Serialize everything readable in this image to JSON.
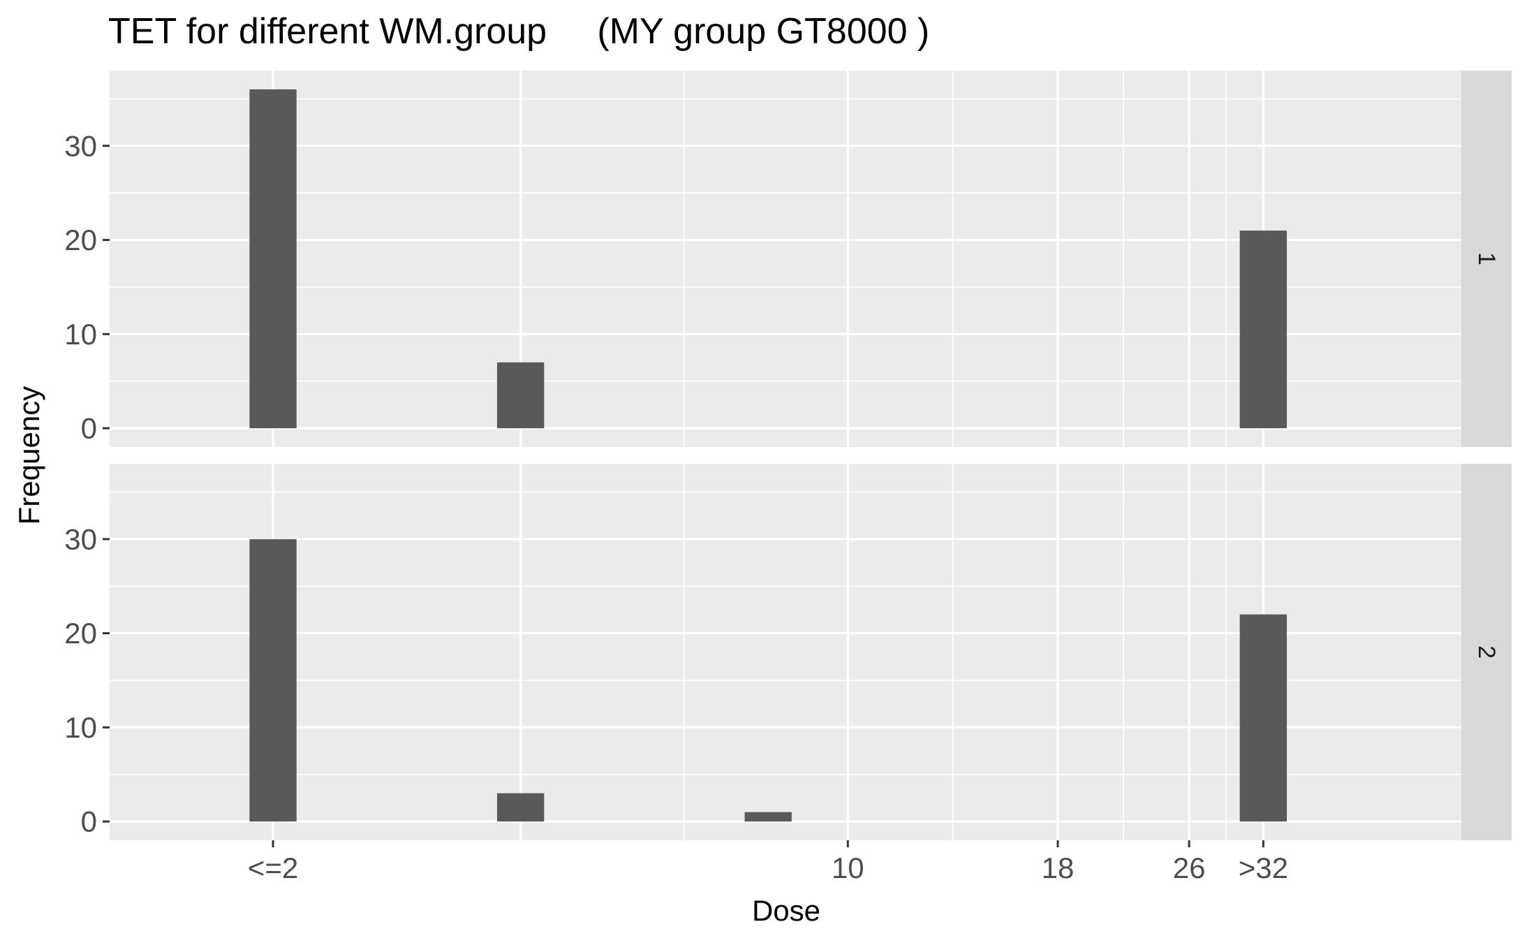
{
  "chart_data": {
    "type": "bar",
    "title": "TET for different WM.group     (MY group GT8000 )",
    "xlabel": "Dose",
    "ylabel": "Frequency",
    "x_ticks": [
      {
        "label": "<=2",
        "value": 2
      },
      {
        "label": "10",
        "value": 10
      },
      {
        "label": "18",
        "value": 18
      },
      {
        "label": "26",
        "value": 26
      },
      {
        "label": ">32",
        "value": 32
      }
    ],
    "x_tick_positions_log2": [
      1,
      3.3219,
      4.1699,
      4.7004,
      5
    ],
    "x_gridlines_log2": [
      1,
      2,
      3.3219,
      4.1699,
      4.7004,
      5
    ],
    "x_minor_gridlines_log2": [
      2.6609,
      3.7459,
      4.4351,
      4.8502
    ],
    "xlim_log2": [
      0.34,
      5.8
    ],
    "bar_width_log2": 0.19,
    "ylim": [
      -2,
      38
    ],
    "y_ticks": [
      0,
      10,
      20,
      30
    ],
    "grid": true,
    "facets": [
      {
        "label": "1",
        "bars": [
          {
            "x_log2": 1.0,
            "value": 36
          },
          {
            "x_log2": 2.0,
            "value": 7
          },
          {
            "x_log2": 5.0,
            "value": 21
          }
        ]
      },
      {
        "label": "2",
        "bars": [
          {
            "x_log2": 1.0,
            "value": 30
          },
          {
            "x_log2": 2.0,
            "value": 3
          },
          {
            "x_log2": 3.0,
            "value": 1
          },
          {
            "x_log2": 5.0,
            "value": 22
          }
        ]
      }
    ],
    "colors": {
      "panel_bg": "#ebebeb",
      "strip_bg": "#d9d9d9",
      "grid_major": "#ffffff",
      "bar_fill": "#595959",
      "tick": "#333333"
    }
  }
}
